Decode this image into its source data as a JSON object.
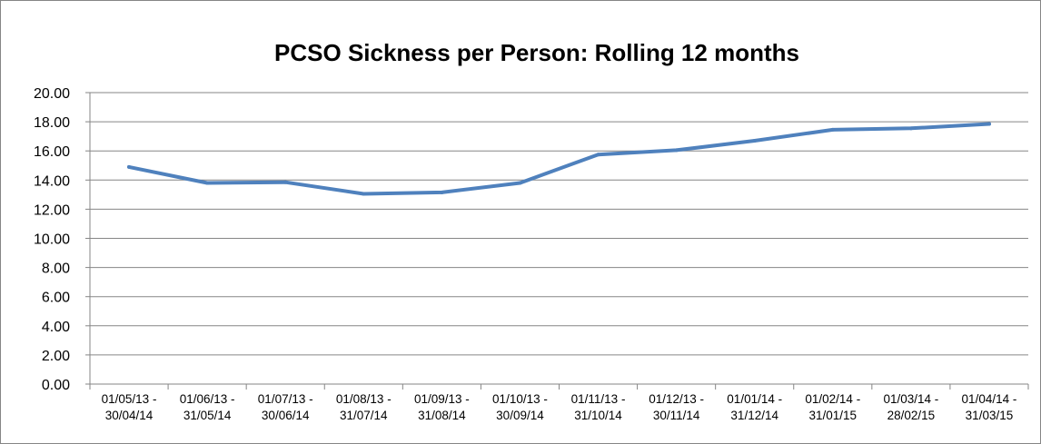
{
  "chart_data": {
    "type": "line",
    "title": "PCSO Sickness per Person: Rolling 12 months",
    "xlabel": "",
    "ylabel": "",
    "ylim": [
      0,
      20
    ],
    "ytick_step": 2,
    "ytick_labels": [
      "0.00",
      "2.00",
      "4.00",
      "6.00",
      "8.00",
      "10.00",
      "12.00",
      "14.00",
      "16.00",
      "18.00",
      "20.00"
    ],
    "grid": true,
    "legend": "none",
    "categories": [
      [
        "01/05/13 -",
        "30/04/14"
      ],
      [
        "01/06/13 -",
        "31/05/14"
      ],
      [
        "01/07/13 -",
        "30/06/14"
      ],
      [
        "01/08/13 -",
        "31/07/14"
      ],
      [
        "01/09/13 -",
        "31/08/14"
      ],
      [
        "01/10/13 -",
        "30/09/14"
      ],
      [
        "01/11/13 -",
        "31/10/14"
      ],
      [
        "01/12/13 -",
        "30/11/14"
      ],
      [
        "01/01/14 -",
        "31/12/14"
      ],
      [
        "01/02/14 -",
        "31/01/15"
      ],
      [
        "01/03/14 -",
        "28/02/15"
      ],
      [
        "01/04/14 -",
        "31/03/15"
      ]
    ],
    "series": [
      {
        "values": [
          14.9,
          13.8,
          13.85,
          13.05,
          13.15,
          13.8,
          15.75,
          16.05,
          16.7,
          17.45,
          17.55,
          17.85
        ],
        "color": "#4f81bd"
      }
    ]
  }
}
